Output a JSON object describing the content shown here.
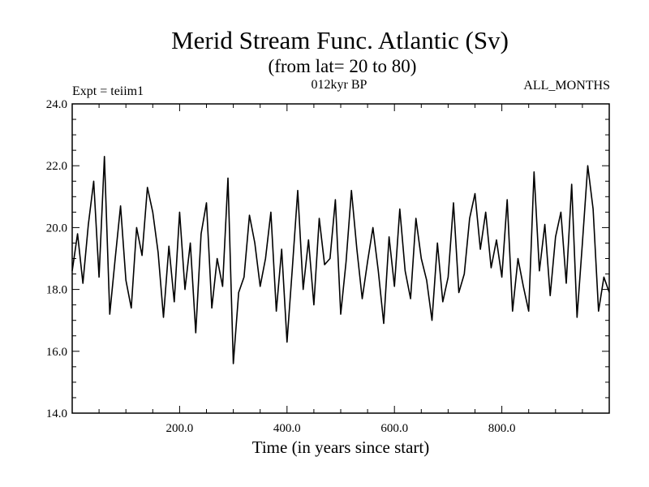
{
  "chart_data": {
    "type": "line",
    "title": "Merid Stream Func. Atlantic (Sv)",
    "subtitle": "(from lat= 20 to 80)",
    "experiment": "Expt = teiim1",
    "period": "012kyr BP",
    "months": "ALL_MONTHS",
    "xlabel": "Time (in years since start)",
    "ylabel": "",
    "xlim": [
      0,
      1000
    ],
    "ylim": [
      14.0,
      24.0
    ],
    "xticks": [
      200.0,
      400.0,
      600.0,
      800.0
    ],
    "xtick_labels": [
      "200.0",
      "400.0",
      "600.0",
      "800.0"
    ],
    "yticks": [
      14.0,
      16.0,
      18.0,
      20.0,
      22.0,
      24.0
    ],
    "ytick_labels": [
      "14.0",
      "16.0",
      "18.0",
      "20.0",
      "22.0",
      "24.0"
    ],
    "grid": false,
    "series": [
      {
        "x": [
          0,
          10,
          20,
          30,
          40,
          50,
          60,
          70,
          80,
          90,
          100,
          110,
          120,
          130,
          140,
          150,
          160,
          170,
          180,
          190,
          200,
          210,
          220,
          230,
          240,
          250,
          260,
          270,
          280,
          290,
          300,
          310,
          320,
          330,
          340,
          350,
          360,
          370,
          380,
          390,
          400,
          410,
          420,
          430,
          440,
          450,
          460,
          470,
          480,
          490,
          500,
          510,
          520,
          530,
          540,
          550,
          560,
          570,
          580,
          590,
          600,
          610,
          620,
          630,
          640,
          650,
          660,
          670,
          680,
          690,
          700,
          710,
          720,
          730,
          740,
          750,
          760,
          770,
          780,
          790,
          800,
          810,
          820,
          830,
          840,
          850,
          860,
          870,
          880,
          890,
          900,
          910,
          920,
          930,
          940,
          950,
          960,
          970,
          980,
          990,
          1000
        ],
        "values": [
          18.6,
          19.8,
          18.2,
          20.1,
          21.5,
          18.4,
          22.3,
          17.2,
          19.0,
          20.7,
          18.3,
          17.4,
          20.0,
          19.1,
          21.3,
          20.5,
          19.2,
          17.1,
          19.4,
          17.6,
          20.5,
          18.0,
          19.5,
          16.6,
          19.8,
          20.8,
          17.4,
          19.0,
          18.1,
          21.6,
          15.6,
          17.9,
          18.4,
          20.4,
          19.5,
          18.1,
          19.0,
          20.5,
          17.3,
          19.3,
          16.3,
          18.7,
          21.2,
          18.0,
          19.6,
          17.5,
          20.3,
          18.8,
          19.0,
          20.9,
          17.2,
          18.9,
          21.2,
          19.3,
          17.7,
          18.9,
          20.0,
          18.6,
          16.9,
          19.7,
          18.1,
          20.6,
          18.6,
          17.7,
          20.3,
          19.0,
          18.3,
          17.0,
          19.5,
          17.6,
          18.4,
          20.8,
          17.9,
          18.5,
          20.3,
          21.1,
          19.3,
          20.5,
          18.7,
          19.6,
          18.4,
          20.9,
          17.3,
          19.0,
          18.1,
          17.3,
          21.8,
          18.6,
          20.1,
          17.8,
          19.7,
          20.5,
          18.2,
          21.4,
          17.1,
          19.5,
          22.0,
          20.6,
          17.3,
          18.4,
          17.9
        ]
      }
    ]
  }
}
